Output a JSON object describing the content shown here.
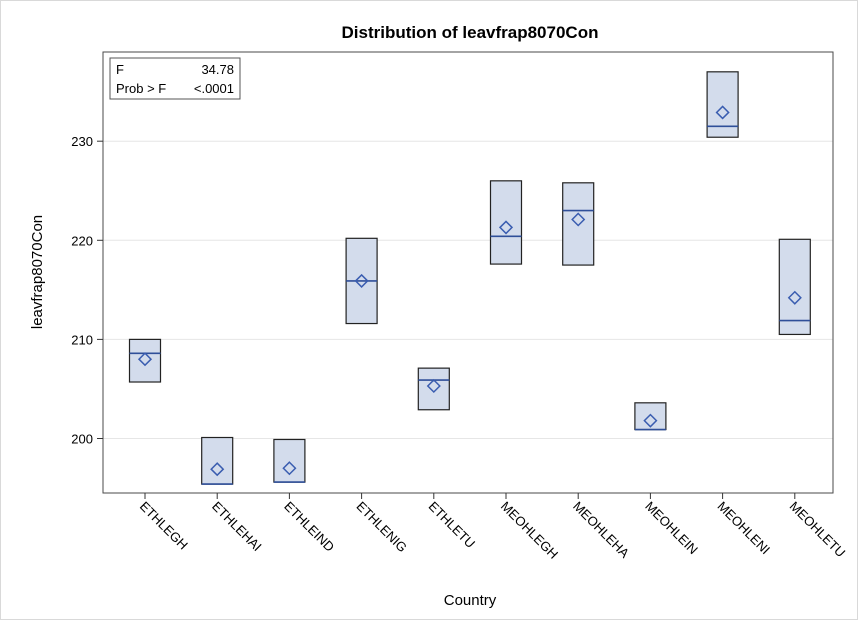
{
  "chart_data": {
    "type": "box",
    "title": "Distribution of leavfrap8070Con",
    "xlabel": "Country",
    "ylabel": "leavfrap8070Con",
    "ylim": [
      194.5,
      239
    ],
    "yticks": [
      200,
      210,
      220,
      230
    ],
    "grid": true,
    "colors": {
      "box_fill": "#d3dcec",
      "box_stroke": "#222222",
      "median": "#2f4f99",
      "mean_marker": "#3a5db0",
      "grid": "#e6e6e6"
    },
    "stats_inset": {
      "f_label": "F",
      "f_value": "34.78",
      "p_label": "Prob > F",
      "p_value": "<.0001",
      "placement": "top-left"
    },
    "categories": [
      "ETHLEGH",
      "ETHLEHAI",
      "ETHLEIND",
      "ETHLENIG",
      "ETHLETU",
      "MEOHLEGH",
      "MEOHLEHA",
      "MEOHLEIN",
      "MEOHLENI",
      "MEOHLETU"
    ],
    "boxes": [
      {
        "q1": 205.7,
        "median": 208.6,
        "q3": 210.0,
        "mean": 208.0
      },
      {
        "q1": 195.4,
        "median": 195.4,
        "q3": 200.1,
        "mean": 196.9
      },
      {
        "q1": 195.6,
        "median": 195.6,
        "q3": 199.9,
        "mean": 197.0
      },
      {
        "q1": 211.6,
        "median": 215.9,
        "q3": 220.2,
        "mean": 215.9
      },
      {
        "q1": 202.9,
        "median": 205.9,
        "q3": 207.1,
        "mean": 205.3
      },
      {
        "q1": 217.6,
        "median": 220.4,
        "q3": 226.0,
        "mean": 221.3
      },
      {
        "q1": 217.5,
        "median": 223.0,
        "q3": 225.8,
        "mean": 222.1
      },
      {
        "q1": 200.9,
        "median": 200.9,
        "q3": 203.6,
        "mean": 201.8
      },
      {
        "q1": 230.4,
        "median": 231.5,
        "q3": 237.0,
        "mean": 232.9
      },
      {
        "q1": 210.5,
        "median": 211.9,
        "q3": 220.1,
        "mean": 214.2
      }
    ]
  }
}
